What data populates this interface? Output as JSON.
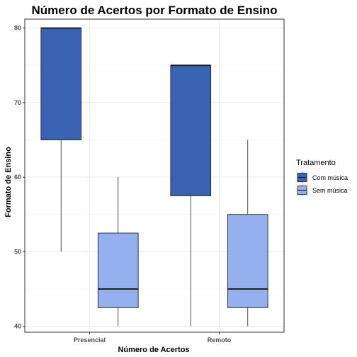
{
  "chart_data": {
    "type": "boxplot",
    "title": "Número de Acertos por Formato de Ensino",
    "xlabel": "Número de Acertos",
    "ylabel": "Formato de Ensino",
    "categories": [
      "Presencial",
      "Remoto"
    ],
    "ylim": [
      39.2,
      81.2
    ],
    "yticks": [
      40,
      50,
      60,
      70,
      80
    ],
    "grid": true,
    "legend": {
      "title": "Tratamento",
      "position": "right"
    },
    "series": [
      {
        "name": "Com música",
        "color": "#3A62B3",
        "boxes": [
          {
            "category": "Presencial",
            "min": 50,
            "q1": 65,
            "median": 80,
            "q3": 80,
            "max": 80
          },
          {
            "category": "Remoto",
            "min": 40,
            "q1": 57.5,
            "median": 75,
            "q3": 75,
            "max": 75
          }
        ]
      },
      {
        "name": "Sem música",
        "color": "#94B0EE",
        "boxes": [
          {
            "category": "Presencial",
            "min": 40,
            "q1": 42.5,
            "median": 45,
            "q3": 52.5,
            "max": 60
          },
          {
            "category": "Remoto",
            "min": 40,
            "q1": 42.5,
            "median": 45,
            "q3": 55,
            "max": 65
          }
        ]
      }
    ]
  }
}
